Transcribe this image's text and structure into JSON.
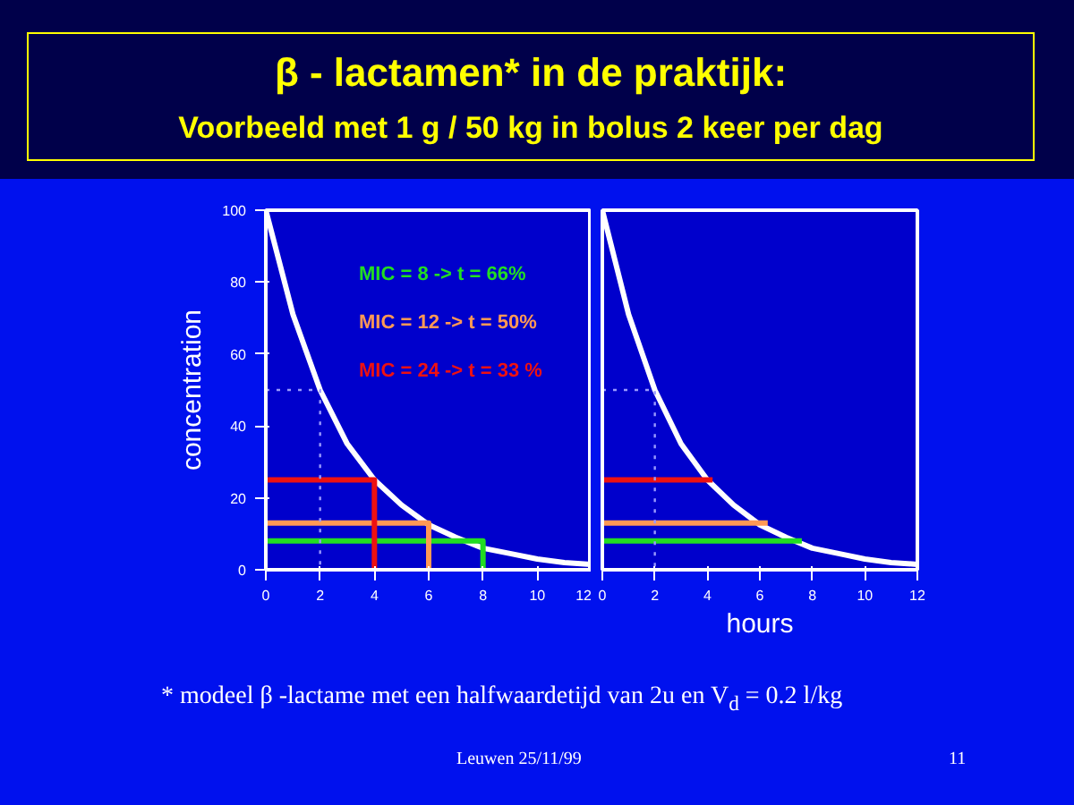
{
  "chart_data": [
    {
      "type": "line",
      "title": "β - lactamen* in de praktijk:",
      "subtitle": "Voorbeeld met 1 g / 50 kg in bolus 2 keer per dag",
      "ylabel": "concentration",
      "xlim": [
        0,
        12
      ],
      "ylim": [
        0,
        100
      ],
      "xticks": [
        0,
        2,
        4,
        6,
        8,
        10,
        12
      ],
      "yticks": [
        0,
        20,
        40,
        60,
        80,
        100
      ],
      "grid": false,
      "line_style": "solid",
      "series": [
        {
          "color": "#ffffff",
          "x": [
            0,
            1,
            2,
            3,
            4,
            5,
            6,
            7,
            8,
            9,
            10,
            11,
            12
          ],
          "values": [
            100,
            71,
            50,
            35,
            25,
            18,
            12.5,
            9,
            6,
            4.5,
            3,
            2,
            1.5
          ]
        },
        {
          "name": "MIC =  8    -> t = 66%",
          "color": "#22dd22",
          "x": [
            0,
            8,
            8
          ],
          "values": [
            8,
            8,
            0
          ]
        },
        {
          "name": "MIC = 12   ->  t = 50%",
          "color": "#ff9955",
          "x": [
            0,
            6,
            6
          ],
          "values": [
            13,
            13,
            0
          ]
        },
        {
          "name": "MIC = 24    -> t = 33 %",
          "color": "#ee1111",
          "x": [
            0,
            4,
            4
          ],
          "values": [
            25,
            25,
            0
          ]
        },
        {
          "color": "#9999ff",
          "line_style": "dotted",
          "x": [
            0,
            2,
            2
          ],
          "values": [
            50,
            50,
            0
          ]
        }
      ],
      "annotations": [
        "* modeel  β -lactame met een halfwaardetijd van 2u en V$_{d}$ = 0.2 l/kg",
        "Leuwen 25/11/99",
        "11"
      ]
    },
    {
      "type": "line",
      "xlabel": "hours",
      "xlim": [
        0,
        12
      ],
      "ylim": [
        0,
        100
      ],
      "xticks": [
        0,
        2,
        4,
        6,
        8,
        10,
        12
      ],
      "yticks": [
        0,
        20,
        40,
        60,
        80,
        100
      ],
      "grid": false,
      "line_style": "solid",
      "tick_labels": "x",
      "series": [
        {
          "color": "#ffffff",
          "x": [
            0,
            1,
            2,
            3,
            4,
            5,
            6,
            7,
            8,
            9,
            10,
            11,
            12
          ],
          "values": [
            100,
            71,
            50,
            35,
            25,
            18,
            12.5,
            9,
            6,
            4.5,
            3,
            2,
            1.5
          ]
        },
        {
          "color": "#22dd22",
          "x": [
            0,
            7.6
          ],
          "values": [
            8,
            8
          ]
        },
        {
          "color": "#ff9955",
          "x": [
            0,
            6.3
          ],
          "values": [
            13,
            13
          ]
        },
        {
          "color": "#ee1111",
          "x": [
            0,
            4.2
          ],
          "values": [
            25,
            25
          ]
        },
        {
          "color": "#9999ff",
          "line_style": "dotted",
          "x": [
            0,
            2,
            2
          ],
          "values": [
            50,
            50,
            0
          ]
        }
      ]
    }
  ]
}
